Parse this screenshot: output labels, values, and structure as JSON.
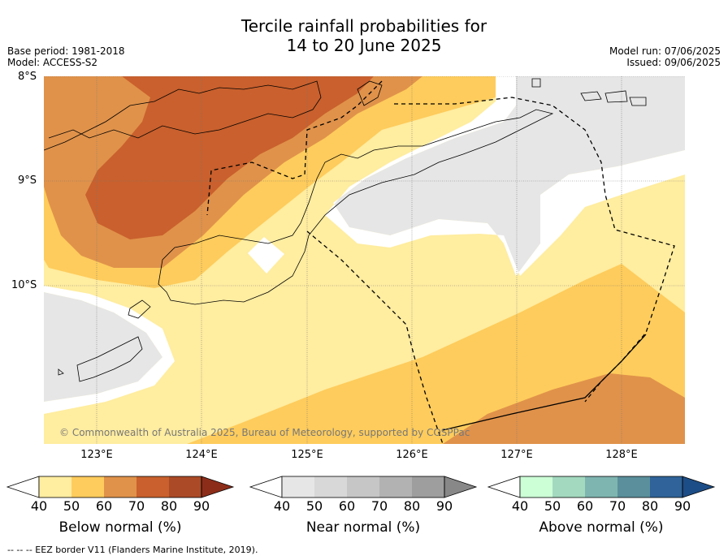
{
  "title_line1": "Tercile rainfall probabilities for",
  "title_line2": "14 to 20 June 2025",
  "left_meta": {
    "base_period": "Base period: 1981-2018",
    "model": "Model: ACCESS-S2"
  },
  "right_meta": {
    "model_run": "Model run: 07/06/2025",
    "issued": "Issued: 09/06/2025"
  },
  "lat_labels": [
    "8°S",
    "9°S",
    "10°S"
  ],
  "lon_labels": [
    "123°E",
    "124°E",
    "125°E",
    "126°E",
    "127°E",
    "128°E"
  ],
  "copyright": "© Commonwealth of Australia 2025, Bureau of Meteorology, supported by COSPPac",
  "colorbars": [
    {
      "label": "Below normal (%)",
      "ticks": [
        "40",
        "50",
        "60",
        "70",
        "80",
        "90"
      ],
      "colors": [
        "#ffeda0",
        "#fecc5c",
        "#e0924a",
        "#c9602d",
        "#ab4a27",
        "#8c2d1a"
      ]
    },
    {
      "label": "Near normal (%)",
      "ticks": [
        "40",
        "50",
        "60",
        "70",
        "80",
        "90"
      ],
      "colors": [
        "#e6e6e6",
        "#d8d8d8",
        "#c6c6c6",
        "#b2b2b2",
        "#9e9e9e",
        "#888888"
      ]
    },
    {
      "label": "Above normal (%)",
      "ticks": [
        "40",
        "50",
        "60",
        "70",
        "80",
        "90"
      ],
      "colors": [
        "#ccffd6",
        "#a3d9bf",
        "#7fb5b0",
        "#5a8f9b",
        "#2f6399",
        "#1d4d86"
      ]
    }
  ],
  "footer": "--  --  -- EEZ border V11 (Flanders Marine Institute, 2019)."
}
